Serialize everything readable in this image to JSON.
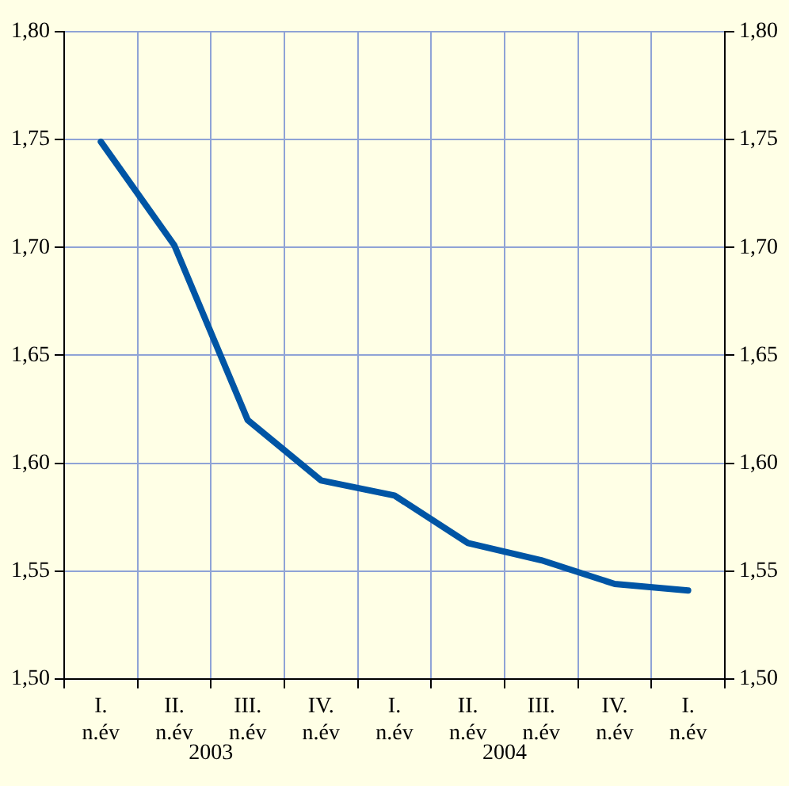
{
  "chart_data": {
    "type": "line",
    "categories": [
      "I. n.év",
      "II. n.év",
      "III. n.év",
      "IV. n.év",
      "I. n.év",
      "II. n.év",
      "III. n.év",
      "IV. n.év",
      "I. n.év"
    ],
    "series": [
      {
        "color": "#0055a5",
        "values": [
          1.749,
          1.701,
          1.62,
          1.592,
          1.585,
          1.563,
          1.555,
          1.544,
          1.541
        ]
      }
    ],
    "ylim": [
      1.5,
      1.8
    ],
    "yticks": [
      {
        "value": 1.5,
        "label": "1,50"
      },
      {
        "value": 1.55,
        "label": "1,55"
      },
      {
        "value": 1.6,
        "label": "1,60"
      },
      {
        "value": 1.65,
        "label": "1,65"
      },
      {
        "value": 1.7,
        "label": "1,70"
      },
      {
        "value": 1.75,
        "label": "1,75"
      },
      {
        "value": 1.8,
        "label": "1,80"
      }
    ],
    "y2lim": [
      1.5,
      1.8
    ],
    "y2ticks": [
      {
        "value": 1.5,
        "label": "1,50"
      },
      {
        "value": 1.55,
        "label": "1,55"
      },
      {
        "value": 1.6,
        "label": "1,60"
      },
      {
        "value": 1.65,
        "label": "1,65"
      },
      {
        "value": 1.7,
        "label": "1,70"
      },
      {
        "value": 1.75,
        "label": "1,75"
      },
      {
        "value": 1.8,
        "label": "1,80"
      }
    ],
    "annotations": [
      "2003",
      "2004"
    ],
    "grid": true,
    "legend": false,
    "marker": "none",
    "line_style": "solid"
  }
}
